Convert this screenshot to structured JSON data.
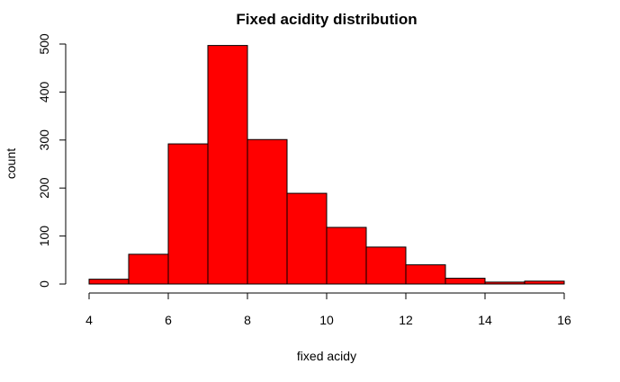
{
  "chart_data": {
    "type": "bar",
    "title": "Fixed acidity distribution",
    "xlabel": "fixed acidy",
    "ylabel": "count",
    "bins": [
      {
        "start": 4,
        "end": 5,
        "count": 10
      },
      {
        "start": 5,
        "end": 6,
        "count": 62
      },
      {
        "start": 6,
        "end": 7,
        "count": 292
      },
      {
        "start": 7,
        "end": 8,
        "count": 497
      },
      {
        "start": 8,
        "end": 9,
        "count": 301
      },
      {
        "start": 9,
        "end": 10,
        "count": 189
      },
      {
        "start": 10,
        "end": 11,
        "count": 118
      },
      {
        "start": 11,
        "end": 12,
        "count": 77
      },
      {
        "start": 12,
        "end": 13,
        "count": 40
      },
      {
        "start": 13,
        "end": 14,
        "count": 12
      },
      {
        "start": 14,
        "end": 15,
        "count": 4
      },
      {
        "start": 15,
        "end": 16,
        "count": 6
      }
    ],
    "xlim": [
      4,
      16
    ],
    "ylim": [
      0,
      500
    ],
    "x_ticks": [
      "4",
      "6",
      "8",
      "10",
      "12",
      "14",
      "16"
    ],
    "y_ticks": [
      "0",
      "100",
      "200",
      "300",
      "400",
      "500"
    ],
    "bar_color": "#ff0000",
    "grid": false,
    "legend": "none"
  }
}
